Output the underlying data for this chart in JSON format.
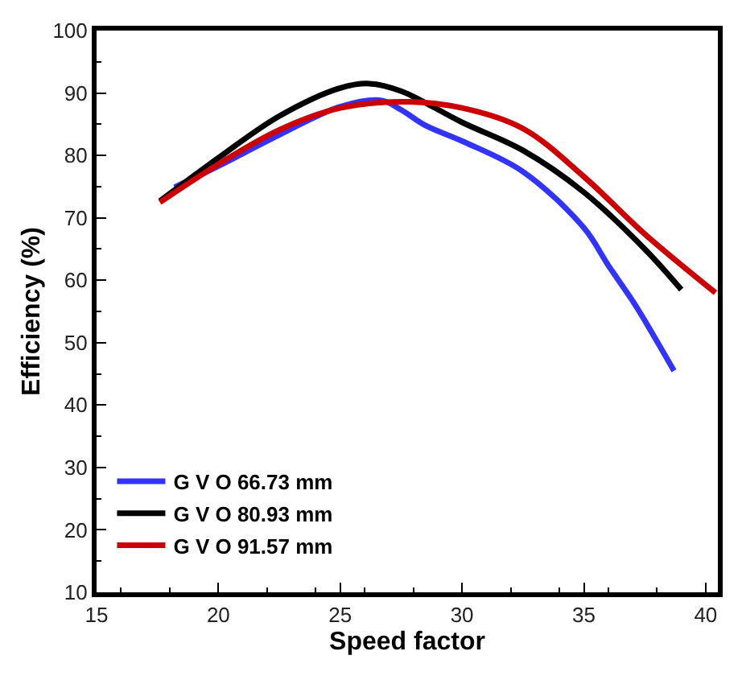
{
  "chart_data": {
    "type": "line",
    "xlabel": "Speed factor",
    "ylabel": "Efficiency (%)",
    "xlim": [
      15,
      40.5
    ],
    "xticks": [
      15,
      20,
      25,
      30,
      35,
      40
    ],
    "ylim": [
      10,
      100
    ],
    "yticks": [
      10,
      20,
      30,
      40,
      50,
      60,
      70,
      80,
      90,
      100
    ],
    "legend": "bottom left",
    "marker": "none",
    "line_style": "solid",
    "series": [
      {
        "name": "G V O 66.73 mm",
        "color": "#3333ff",
        "x": [
          18.2,
          20,
          22.5,
          25,
          26.7,
          27.5,
          28.5,
          30,
          32.5,
          35,
          36,
          37,
          37.4,
          38.7
        ],
        "values": [
          74.9,
          78.3,
          83.3,
          87.8,
          88.8,
          87.3,
          84.8,
          82.3,
          77.4,
          68.4,
          62.4,
          56.7,
          54.2,
          45.5
        ]
      },
      {
        "name": "G V O 80.93 mm",
        "color": "#000000",
        "x": [
          17.6,
          20,
          22.5,
          25,
          26.2,
          27.5,
          30,
          32.5,
          35,
          37.5,
          39.0
        ],
        "values": [
          72.7,
          79.6,
          86.3,
          90.8,
          91.5,
          90.3,
          85.3,
          80.8,
          74.1,
          65,
          58.5
        ]
      },
      {
        "name": "G V O 91.57 mm",
        "color": "#cc0000",
        "x": [
          17.6,
          20,
          22.5,
          25,
          27.5,
          30,
          32.5,
          35,
          37.5,
          40.4
        ],
        "values": [
          72.5,
          78.6,
          84.1,
          87.6,
          88.6,
          87.6,
          84.3,
          76.6,
          67.4,
          58.0
        ]
      }
    ]
  }
}
